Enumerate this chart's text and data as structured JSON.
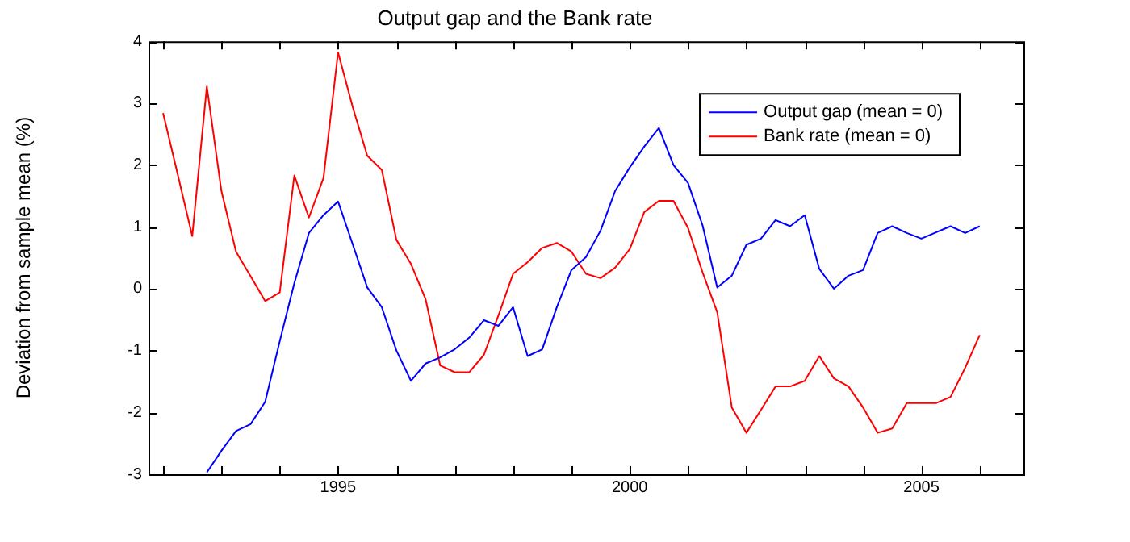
{
  "chart_data": {
    "type": "line",
    "title": "Output gap and the Bank rate",
    "ylabel": "Deviation from sample mean (%)",
    "x": [
      1992,
      1992.25,
      1992.5,
      1992.75,
      1993,
      1993.25,
      1993.5,
      1993.75,
      1994,
      1994.25,
      1994.5,
      1994.75,
      1995,
      1995.25,
      1995.5,
      1995.75,
      1996,
      1996.25,
      1996.5,
      1996.75,
      1997,
      1997.25,
      1997.5,
      1997.75,
      1998,
      1998.25,
      1998.5,
      1998.75,
      1999,
      1999.25,
      1999.5,
      1999.75,
      2000,
      2000.25,
      2000.5,
      2000.75,
      2001,
      2001.25,
      2001.5,
      2001.75,
      2002,
      2002.25,
      2002.5,
      2002.75,
      2003,
      2003.25,
      2003.5,
      2003.75,
      2004,
      2004.25,
      2004.5,
      2004.75,
      2005,
      2005.25,
      2005.5,
      2005.75,
      2006
    ],
    "series": [
      {
        "name": "Output gap (mean = 0)",
        "color": "#0000ff",
        "values": [
          null,
          null,
          null,
          -2.97,
          -2.62,
          -2.3,
          -2.19,
          -1.83,
          -0.85,
          0.09,
          0.9,
          1.19,
          1.41,
          0.72,
          0.02,
          -0.3,
          -1.0,
          -1.49,
          -1.21,
          -1.11,
          -0.98,
          -0.79,
          -0.51,
          -0.6,
          -0.3,
          -1.09,
          -0.98,
          -0.3,
          0.3,
          0.51,
          0.94,
          1.58,
          1.96,
          2.3,
          2.6,
          2.0,
          1.71,
          1.02,
          0.02,
          0.21,
          0.71,
          0.81,
          1.11,
          1.01,
          1.19,
          0.32,
          0.0,
          0.21,
          0.3,
          0.9,
          1.01,
          0.9,
          0.81,
          0.91,
          1.01,
          0.9,
          1.01
        ]
      },
      {
        "name": "Bank rate (mean = 0)",
        "color": "#ff0000",
        "values": [
          2.84,
          1.85,
          0.85,
          3.27,
          1.58,
          0.6,
          0.2,
          -0.2,
          -0.06,
          1.83,
          1.15,
          1.79,
          3.82,
          2.94,
          2.15,
          1.92,
          0.79,
          0.4,
          -0.17,
          -1.24,
          -1.35,
          -1.35,
          -1.07,
          -0.43,
          0.24,
          0.43,
          0.66,
          0.74,
          0.6,
          0.24,
          0.17,
          0.34,
          0.64,
          1.24,
          1.42,
          1.42,
          0.98,
          0.26,
          -0.38,
          -1.92,
          -2.33,
          -1.96,
          -1.58,
          -1.58,
          -1.49,
          -1.09,
          -1.45,
          -1.58,
          -1.92,
          -2.33,
          -2.26,
          -1.85,
          -1.85,
          -1.85,
          -1.75,
          -1.28,
          -0.75
        ]
      }
    ],
    "xlim": [
      1991.75,
      2006.75
    ],
    "xticks": [
      {
        "value": 1992,
        "label": null
      },
      {
        "value": 1993,
        "label": null
      },
      {
        "value": 1994,
        "label": null
      },
      1995,
      {
        "value": 1996,
        "label": null
      },
      {
        "value": 1997,
        "label": null
      },
      {
        "value": 1998,
        "label": null
      },
      {
        "value": 1999,
        "label": null
      },
      2000,
      {
        "value": 2001,
        "label": null
      },
      {
        "value": 2002,
        "label": null
      },
      {
        "value": 2003,
        "label": null
      },
      {
        "value": 2004,
        "label": null
      },
      2005,
      {
        "value": 2006,
        "label": null
      }
    ],
    "ylim": [
      -3,
      4
    ],
    "yticks": [
      -3,
      -2,
      -1,
      0,
      1,
      2,
      3,
      4
    ],
    "grid": false,
    "legend": "top right",
    "marker": "none",
    "line_style": "solid"
  }
}
